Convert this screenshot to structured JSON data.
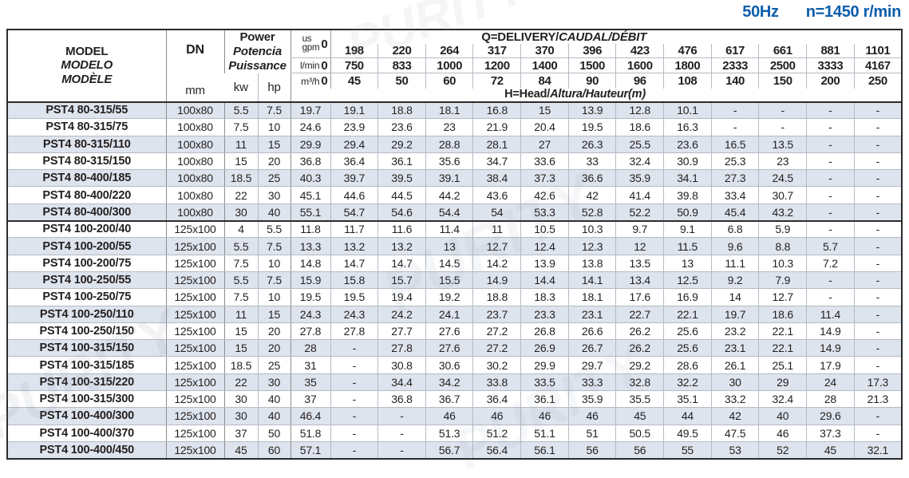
{
  "heading": {
    "frequency": "50Hz",
    "speed": "n=1450 r/min"
  },
  "watermark": "PURITY",
  "table": {
    "header": {
      "model_lines": [
        "MODEL",
        "MODELO",
        "MODÈLE"
      ],
      "dn_label": "DN",
      "dn_unit": "mm",
      "power_lines": [
        "Power",
        "Potencia",
        "Puissance"
      ],
      "kw_label": "kw",
      "hp_label": "hp",
      "delivery_title_plain": "Q=DELIVERY/",
      "delivery_title_italic": "CAUDAL/DÉBIT",
      "head_title_plain": "H=Head/",
      "head_title_italic": "Altura/Hauteur(m)",
      "zero": "0",
      "gpm_unit_line1": "us",
      "gpm_unit_line2": "gpm",
      "lmin_unit": "l/min",
      "m3h_unit": "m³/h",
      "gpm_values": [
        "198",
        "220",
        "264",
        "317",
        "370",
        "396",
        "423",
        "476",
        "617",
        "661",
        "881",
        "1101"
      ],
      "lmin_values": [
        "750",
        "833",
        "1000",
        "1200",
        "1400",
        "1500",
        "1600",
        "1800",
        "2333",
        "2500",
        "3333",
        "4167"
      ],
      "m3h_values": [
        "45",
        "50",
        "60",
        "72",
        "84",
        "90",
        "96",
        "108",
        "140",
        "150",
        "200",
        "250"
      ]
    },
    "rows": [
      {
        "model": "PST4 80-315/55",
        "dn": "100x80",
        "kw": "5.5",
        "hp": "7.5",
        "heads": [
          "19.7",
          "19.1",
          "18.8",
          "18.1",
          "16.8",
          "15",
          "13.9",
          "12.8",
          "10.1",
          "-",
          "-",
          "-",
          "-"
        ]
      },
      {
        "model": "PST4 80-315/75",
        "dn": "100x80",
        "kw": "7.5",
        "hp": "10",
        "heads": [
          "24.6",
          "23.9",
          "23.6",
          "23",
          "21.9",
          "20.4",
          "19.5",
          "18.6",
          "16.3",
          "-",
          "-",
          "-",
          "-"
        ]
      },
      {
        "model": "PST4 80-315/110",
        "dn": "100x80",
        "kw": "11",
        "hp": "15",
        "heads": [
          "29.9",
          "29.4",
          "29.2",
          "28.8",
          "28.1",
          "27",
          "26.3",
          "25.5",
          "23.6",
          "16.5",
          "13.5",
          "-",
          "-"
        ]
      },
      {
        "model": "PST4 80-315/150",
        "dn": "100x80",
        "kw": "15",
        "hp": "20",
        "heads": [
          "36.8",
          "36.4",
          "36.1",
          "35.6",
          "34.7",
          "33.6",
          "33",
          "32.4",
          "30.9",
          "25.3",
          "23",
          "-",
          "-"
        ]
      },
      {
        "model": "PST4 80-400/185",
        "dn": "100x80",
        "kw": "18.5",
        "hp": "25",
        "heads": [
          "40.3",
          "39.7",
          "39.5",
          "39.1",
          "38.4",
          "37.3",
          "36.6",
          "35.9",
          "34.1",
          "27.3",
          "24.5",
          "-",
          "-"
        ]
      },
      {
        "model": "PST4 80-400/220",
        "dn": "100x80",
        "kw": "22",
        "hp": "30",
        "heads": [
          "45.1",
          "44.6",
          "44.5",
          "44.2",
          "43.6",
          "42.6",
          "42",
          "41.4",
          "39.8",
          "33.4",
          "30.7",
          "-",
          "-"
        ]
      },
      {
        "model": "PST4 80-400/300",
        "dn": "100x80",
        "kw": "30",
        "hp": "40",
        "heads": [
          "55.1",
          "54.7",
          "54.6",
          "54.4",
          "54",
          "53.3",
          "52.8",
          "52.2",
          "50.9",
          "45.4",
          "43.2",
          "-",
          "-"
        ]
      },
      {
        "model": "PST4 100-200/40",
        "dn": "125x100",
        "kw": "4",
        "hp": "5.5",
        "group_start": true,
        "heads": [
          "11.8",
          "11.7",
          "11.6",
          "11.4",
          "11",
          "10.5",
          "10.3",
          "9.7",
          "9.1",
          "6.8",
          "5.9",
          "-",
          "-"
        ]
      },
      {
        "model": "PST4 100-200/55",
        "dn": "125x100",
        "kw": "5.5",
        "hp": "7.5",
        "heads": [
          "13.3",
          "13.2",
          "13.2",
          "13",
          "12.7",
          "12.4",
          "12.3",
          "12",
          "11.5",
          "9.6",
          "8.8",
          "5.7",
          "-"
        ]
      },
      {
        "model": "PST4 100-200/75",
        "dn": "125x100",
        "kw": "7.5",
        "hp": "10",
        "heads": [
          "14.8",
          "14.7",
          "14.7",
          "14.5",
          "14.2",
          "13.9",
          "13.8",
          "13.5",
          "13",
          "11.1",
          "10.3",
          "7.2",
          "-"
        ]
      },
      {
        "model": "PST4 100-250/55",
        "dn": "125x100",
        "kw": "5.5",
        "hp": "7.5",
        "heads": [
          "15.9",
          "15.8",
          "15.7",
          "15.5",
          "14.9",
          "14.4",
          "14.1",
          "13.4",
          "12.5",
          "9.2",
          "7.9",
          "-",
          "-"
        ]
      },
      {
        "model": "PST4 100-250/75",
        "dn": "125x100",
        "kw": "7.5",
        "hp": "10",
        "heads": [
          "19.5",
          "19.5",
          "19.4",
          "19.2",
          "18.8",
          "18.3",
          "18.1",
          "17.6",
          "16.9",
          "14",
          "12.7",
          "-",
          "-"
        ]
      },
      {
        "model": "PST4 100-250/110",
        "dn": "125x100",
        "kw": "11",
        "hp": "15",
        "heads": [
          "24.3",
          "24.3",
          "24.2",
          "24.1",
          "23.7",
          "23.3",
          "23.1",
          "22.7",
          "22.1",
          "19.7",
          "18.6",
          "11.4",
          "-"
        ]
      },
      {
        "model": "PST4 100-250/150",
        "dn": "125x100",
        "kw": "15",
        "hp": "20",
        "heads": [
          "27.8",
          "27.8",
          "27.7",
          "27.6",
          "27.2",
          "26.8",
          "26.6",
          "26.2",
          "25.6",
          "23.2",
          "22.1",
          "14.9",
          "-"
        ]
      },
      {
        "model": "PST4 100-315/150",
        "dn": "125x100",
        "kw": "15",
        "hp": "20",
        "heads": [
          "28",
          "-",
          "27.8",
          "27.6",
          "27.2",
          "26.9",
          "26.7",
          "26.2",
          "25.6",
          "23.1",
          "22.1",
          "14.9",
          "-"
        ]
      },
      {
        "model": "PST4 100-315/185",
        "dn": "125x100",
        "kw": "18.5",
        "hp": "25",
        "heads": [
          "31",
          "-",
          "30.8",
          "30.6",
          "30.2",
          "29.9",
          "29.7",
          "29.2",
          "28.6",
          "26.1",
          "25.1",
          "17.9",
          "-"
        ]
      },
      {
        "model": "PST4 100-315/220",
        "dn": "125x100",
        "kw": "22",
        "hp": "30",
        "heads": [
          "35",
          "-",
          "34.4",
          "34.2",
          "33.8",
          "33.5",
          "33.3",
          "32.8",
          "32.2",
          "30",
          "29",
          "24",
          "17.3"
        ]
      },
      {
        "model": "PST4 100-315/300",
        "dn": "125x100",
        "kw": "30",
        "hp": "40",
        "heads": [
          "37",
          "-",
          "36.8",
          "36.7",
          "36.4",
          "36.1",
          "35.9",
          "35.5",
          "35.1",
          "33.2",
          "32.4",
          "28",
          "21.3"
        ]
      },
      {
        "model": "PST4 100-400/300",
        "dn": "125x100",
        "kw": "30",
        "hp": "40",
        "heads": [
          "46.4",
          "-",
          "-",
          "46",
          "46",
          "46",
          "46",
          "45",
          "44",
          "42",
          "40",
          "29.6",
          "-"
        ]
      },
      {
        "model": "PST4 100-400/370",
        "dn": "125x100",
        "kw": "37",
        "hp": "50",
        "heads": [
          "51.8",
          "-",
          "-",
          "51.3",
          "51.2",
          "51.1",
          "51",
          "50.5",
          "49.5",
          "47.5",
          "46",
          "37.3",
          "-"
        ]
      },
      {
        "model": "PST4 100-400/450",
        "dn": "125x100",
        "kw": "45",
        "hp": "60",
        "heads": [
          "57.1",
          "-",
          "-",
          "56.7",
          "56.4",
          "56.1",
          "56",
          "56",
          "55",
          "53",
          "52",
          "45",
          "32.1"
        ]
      }
    ]
  }
}
